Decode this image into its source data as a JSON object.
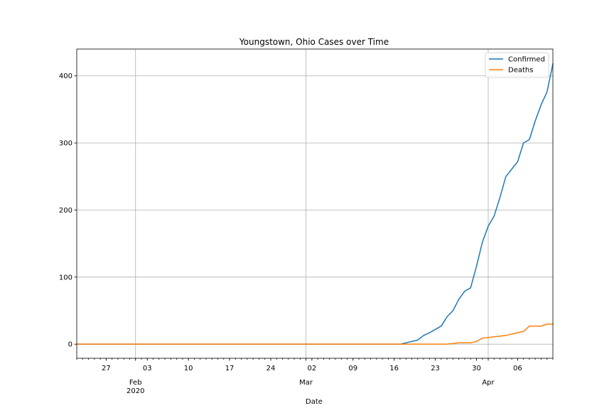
{
  "chart_data": {
    "type": "line",
    "title": "Youngstown, Ohio Cases over Time",
    "xlabel": "Date",
    "ylabel": "",
    "grid": true,
    "legend_position": "top-right",
    "xlim": [
      "2020-01-22",
      "2020-04-12"
    ],
    "ylim": [
      -21,
      440
    ],
    "y_ticks": [
      0,
      100,
      200,
      300,
      400
    ],
    "x_major_ticks": [
      {
        "date": "2020-02-01",
        "label": "Feb",
        "sublabel": "2020"
      },
      {
        "date": "2020-03-01",
        "label": "Mar",
        "sublabel": ""
      },
      {
        "date": "2020-04-01",
        "label": "Apr",
        "sublabel": ""
      }
    ],
    "x_minor_ticks": [
      {
        "date": "2020-01-27",
        "label": "27"
      },
      {
        "date": "2020-02-03",
        "label": "03"
      },
      {
        "date": "2020-02-10",
        "label": "10"
      },
      {
        "date": "2020-02-17",
        "label": "17"
      },
      {
        "date": "2020-02-24",
        "label": "24"
      },
      {
        "date": "2020-03-02",
        "label": "02"
      },
      {
        "date": "2020-03-09",
        "label": "09"
      },
      {
        "date": "2020-03-16",
        "label": "16"
      },
      {
        "date": "2020-03-23",
        "label": "23"
      },
      {
        "date": "2020-03-30",
        "label": "30"
      },
      {
        "date": "2020-04-06",
        "label": "06"
      }
    ],
    "series": [
      {
        "name": "Confirmed",
        "color": "#1f77b4",
        "points": [
          [
            "2020-01-22",
            0
          ],
          [
            "2020-03-16",
            0
          ],
          [
            "2020-03-17",
            0
          ],
          [
            "2020-03-18",
            2
          ],
          [
            "2020-03-19",
            4
          ],
          [
            "2020-03-20",
            6
          ],
          [
            "2020-03-21",
            13
          ],
          [
            "2020-03-22",
            17
          ],
          [
            "2020-03-23",
            22
          ],
          [
            "2020-03-24",
            27
          ],
          [
            "2020-03-25",
            41
          ],
          [
            "2020-03-26",
            50
          ],
          [
            "2020-03-27",
            67
          ],
          [
            "2020-03-28",
            79
          ],
          [
            "2020-03-29",
            84
          ],
          [
            "2020-03-30",
            116
          ],
          [
            "2020-03-31",
            152
          ],
          [
            "2020-04-01",
            176
          ],
          [
            "2020-04-02",
            191
          ],
          [
            "2020-04-03",
            219
          ],
          [
            "2020-04-04",
            250
          ],
          [
            "2020-04-05",
            261
          ],
          [
            "2020-04-06",
            272
          ],
          [
            "2020-04-07",
            300
          ],
          [
            "2020-04-08",
            305
          ],
          [
            "2020-04-09",
            333
          ],
          [
            "2020-04-10",
            357
          ],
          [
            "2020-04-11",
            376
          ],
          [
            "2020-04-12",
            418
          ]
        ]
      },
      {
        "name": "Deaths",
        "color": "#ff7f0e",
        "points": [
          [
            "2020-01-22",
            0
          ],
          [
            "2020-03-25",
            0
          ],
          [
            "2020-03-26",
            1
          ],
          [
            "2020-03-27",
            2
          ],
          [
            "2020-03-28",
            2
          ],
          [
            "2020-03-29",
            2
          ],
          [
            "2020-03-30",
            4
          ],
          [
            "2020-03-31",
            9
          ],
          [
            "2020-04-01",
            10
          ],
          [
            "2020-04-02",
            11
          ],
          [
            "2020-04-03",
            12
          ],
          [
            "2020-04-04",
            13
          ],
          [
            "2020-04-05",
            15
          ],
          [
            "2020-04-06",
            17
          ],
          [
            "2020-04-07",
            19
          ],
          [
            "2020-04-08",
            27
          ],
          [
            "2020-04-09",
            27
          ],
          [
            "2020-04-10",
            27
          ],
          [
            "2020-04-11",
            30
          ],
          [
            "2020-04-12",
            30
          ]
        ]
      }
    ]
  }
}
